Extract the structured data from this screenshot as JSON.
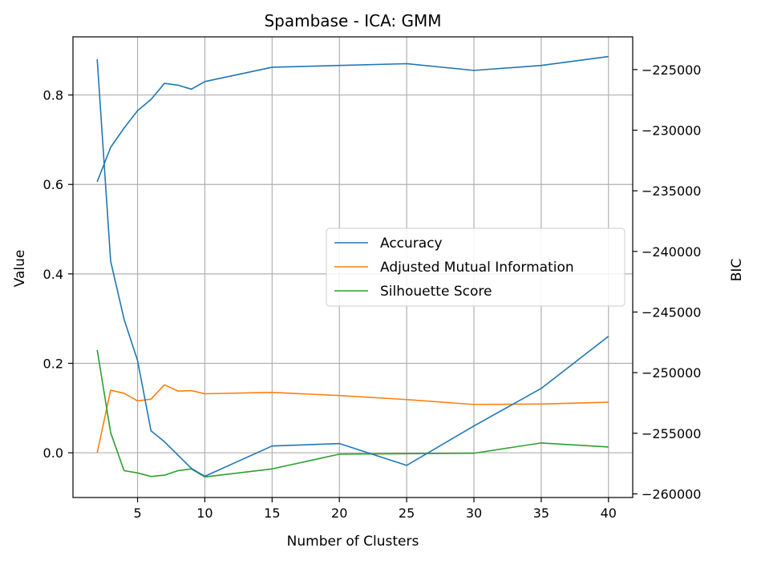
{
  "chart_data": {
    "type": "line",
    "title": "Spambase - ICA: GMM",
    "xlabel": "Number of Clusters",
    "ylabel": "Value",
    "y2label": "BIC",
    "xlim": [
      0.2,
      41.8
    ],
    "ylim": [
      -0.1,
      0.93
    ],
    "y2lim": [
      -260300,
      -222300
    ],
    "xticks": [
      5,
      10,
      15,
      20,
      25,
      30,
      35,
      40
    ],
    "yticks": [
      0.0,
      0.2,
      0.4,
      0.6,
      0.8
    ],
    "y2ticks": [
      -260000,
      -255000,
      -250000,
      -245000,
      -240000,
      -235000,
      -230000,
      -225000
    ],
    "xtick_labels": [
      "5",
      "10",
      "15",
      "20",
      "25",
      "30",
      "35",
      "40"
    ],
    "ytick_labels": [
      "0.0",
      "0.2",
      "0.4",
      "0.6",
      "0.8"
    ],
    "y2tick_labels": [
      "−260000",
      "−255000",
      "−250000",
      "−245000",
      "−240000",
      "−235000",
      "−230000",
      "−225000"
    ],
    "grid": true,
    "legend_position": "center-right",
    "x": [
      2,
      3,
      4,
      5,
      6,
      7,
      8,
      9,
      10,
      15,
      20,
      25,
      30,
      35,
      40
    ],
    "series": [
      {
        "name": "Accuracy",
        "axis": "left",
        "color": "#1f77b4",
        "values": [
          0.606,
          0.683,
          0.726,
          0.765,
          0.79,
          0.826,
          0.822,
          0.813,
          0.83,
          0.862,
          0.866,
          0.87,
          0.855,
          0.866,
          0.886
        ]
      },
      {
        "name": "Adjusted Mutual Information",
        "axis": "left",
        "color": "#ff7f0e",
        "values": [
          0.0,
          0.14,
          0.133,
          0.116,
          0.12,
          0.152,
          0.138,
          0.139,
          0.132,
          0.135,
          0.128,
          0.119,
          0.108,
          0.109,
          0.113
        ]
      },
      {
        "name": "Silhouette Score",
        "axis": "left",
        "color": "#2ca02c",
        "values": [
          0.23,
          0.045,
          -0.04,
          -0.045,
          -0.053,
          -0.05,
          -0.04,
          -0.036,
          -0.054,
          -0.036,
          -0.003,
          -0.002,
          -0.001,
          0.022,
          0.013
        ]
      },
      {
        "name": "BIC",
        "axis": "right",
        "color": "#1f77b4",
        "values": [
          -224150,
          -240800,
          -245600,
          -249000,
          -254800,
          -255700,
          -256800,
          -257900,
          -258550,
          -256050,
          -255850,
          -257650,
          -254400,
          -251300,
          -247000
        ]
      }
    ],
    "legend": [
      "Accuracy",
      "Adjusted Mutual Information",
      "Silhouette Score"
    ]
  }
}
